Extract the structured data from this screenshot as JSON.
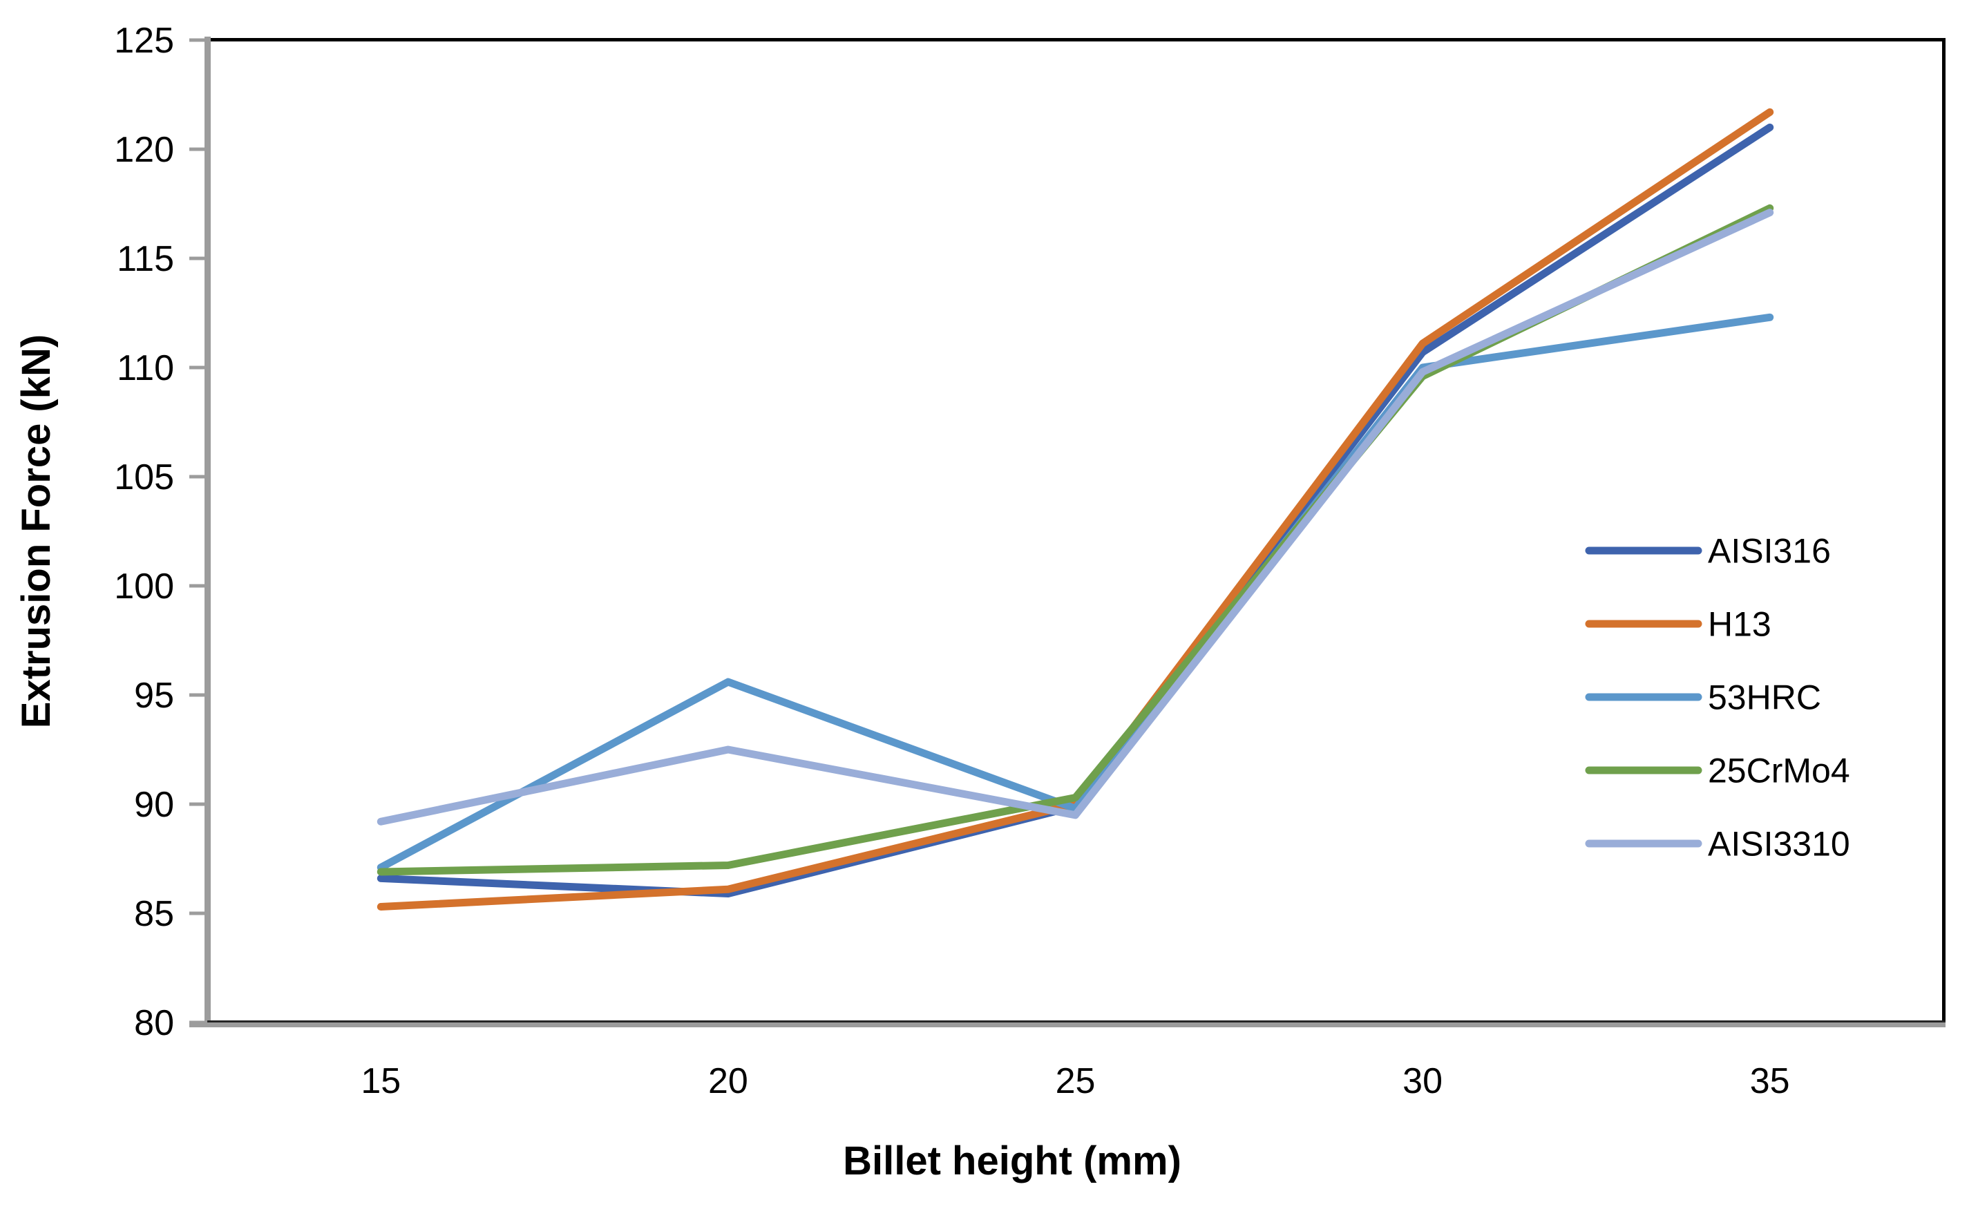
{
  "chart_data": {
    "type": "line",
    "title": "",
    "xlabel": "Billet height (mm)",
    "ylabel": "Extrusion Force (kN)",
    "categories": [
      15,
      20,
      25,
      30,
      35
    ],
    "ylim": [
      80,
      125
    ],
    "ytick_step": 5,
    "ytick_labels": [
      "80",
      "85",
      "90",
      "95",
      "100",
      "105",
      "110",
      "115",
      "120",
      "125"
    ],
    "grid": false,
    "legend_position": "inside-right",
    "series": [
      {
        "name": "AISI316",
        "color": "#3E63AD",
        "values": [
          86.6,
          85.9,
          89.9,
          110.7,
          121.0
        ]
      },
      {
        "name": "H13",
        "color": "#D4722C",
        "values": [
          85.3,
          86.1,
          90.0,
          111.1,
          121.7
        ]
      },
      {
        "name": "53HRC",
        "color": "#5B97CB",
        "values": [
          87.1,
          95.6,
          89.8,
          110.0,
          112.3
        ]
      },
      {
        "name": "25CrMo4",
        "color": "#6FA04C",
        "values": [
          86.9,
          87.2,
          90.3,
          109.6,
          117.3
        ]
      },
      {
        "name": "AISI3310",
        "color": "#99ADD8",
        "values": [
          89.2,
          92.5,
          89.5,
          109.8,
          117.1
        ]
      }
    ],
    "axis_color": "#9C9C9C",
    "border_color": "#000000",
    "line_width": 11
  }
}
